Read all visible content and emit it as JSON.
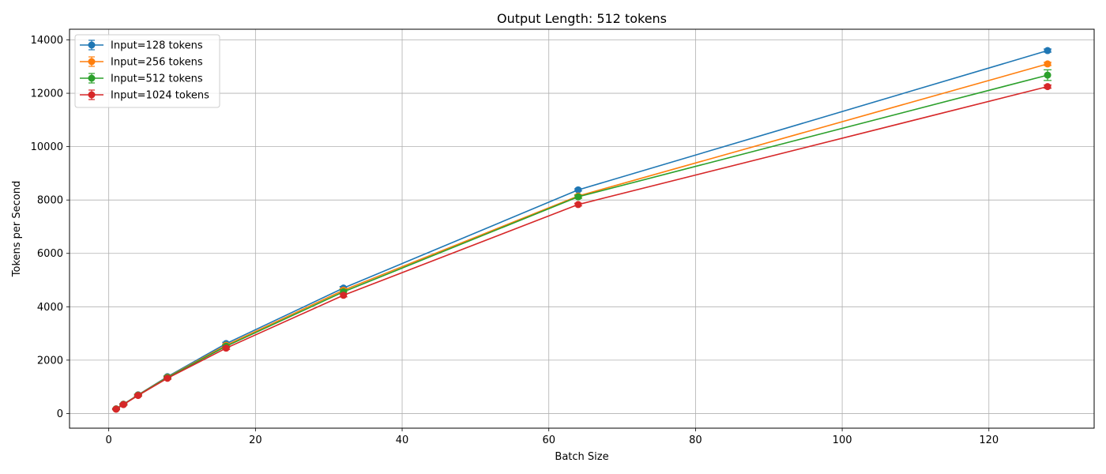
{
  "chart_data": {
    "type": "line",
    "title": "Output Length: 512 tokens",
    "xlabel": "Batch Size",
    "ylabel": "Tokens per Second",
    "xlim": [
      -5.35,
      134.35
    ],
    "ylim": [
      -550,
      14400
    ],
    "xticks": [
      0,
      20,
      40,
      60,
      80,
      100,
      120
    ],
    "yticks": [
      0,
      2000,
      4000,
      6000,
      8000,
      10000,
      12000,
      14000
    ],
    "grid": true,
    "legend_position": "upper-left",
    "x": [
      1,
      2,
      4,
      8,
      16,
      32,
      64,
      128
    ],
    "series": [
      {
        "name": "Input=128 tokens",
        "color": "#1f77b4",
        "values": [
          175,
          350,
          700,
          1380,
          2620,
          4700,
          8380,
          13600
        ],
        "errors": [
          20,
          25,
          30,
          40,
          50,
          60,
          40,
          60
        ]
      },
      {
        "name": "Input=256 tokens",
        "color": "#ff7f0e",
        "values": [
          170,
          345,
          690,
          1360,
          2560,
          4620,
          8150,
          13100
        ],
        "errors": [
          20,
          25,
          30,
          40,
          50,
          60,
          50,
          60
        ]
      },
      {
        "name": "Input=512 tokens",
        "color": "#2ca02c",
        "values": [
          168,
          340,
          685,
          1350,
          2520,
          4560,
          8120,
          12680
        ],
        "errors": [
          20,
          25,
          30,
          40,
          50,
          80,
          60,
          200
        ]
      },
      {
        "name": "Input=1024 tokens",
        "color": "#d62728",
        "values": [
          162,
          335,
          675,
          1320,
          2450,
          4430,
          7830,
          12250
        ],
        "errors": [
          20,
          25,
          30,
          40,
          50,
          60,
          50,
          60
        ]
      }
    ]
  }
}
